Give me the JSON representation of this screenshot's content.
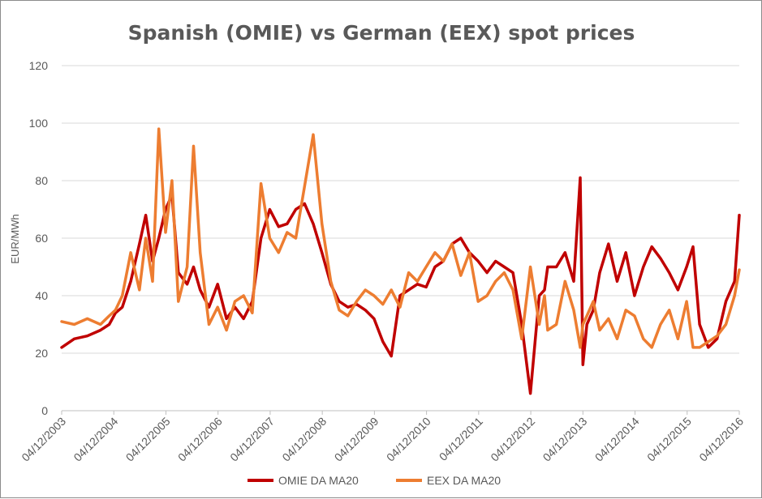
{
  "chart_data": {
    "type": "line",
    "title": "Spanish (OMIE) vs German (EEX) spot prices",
    "ylabel": "EUR/MWh",
    "xlabel": "",
    "ylim": [
      0,
      120
    ],
    "yticks": [
      0,
      20,
      40,
      60,
      80,
      100,
      120
    ],
    "xticks": [
      "04/12/2003",
      "04/12/2004",
      "04/12/2005",
      "04/12/2006",
      "04/12/2007",
      "04/12/2008",
      "04/12/2009",
      "04/12/2010",
      "04/12/2011",
      "04/12/2012",
      "04/12/2013",
      "04/12/2014",
      "04/12/2015",
      "04/12/2016"
    ],
    "grid": "horizontal",
    "legend": "bottom",
    "x_units": "date",
    "series": [
      {
        "name": "OMIE DA MA20",
        "color": "#c00000",
        "x": [
          "2003-12-04",
          "2004-03-01",
          "2004-06-01",
          "2004-09-01",
          "2004-11-01",
          "2004-12-15",
          "2005-02-01",
          "2005-04-01",
          "2005-06-01",
          "2005-07-15",
          "2005-09-01",
          "2005-10-15",
          "2005-12-01",
          "2006-01-15",
          "2006-03-01",
          "2006-05-01",
          "2006-06-15",
          "2006-08-01",
          "2006-10-01",
          "2006-12-01",
          "2007-02-01",
          "2007-04-01",
          "2007-06-01",
          "2007-08-01",
          "2007-10-01",
          "2007-12-01",
          "2008-02-01",
          "2008-04-01",
          "2008-06-01",
          "2008-08-01",
          "2008-10-01",
          "2008-12-01",
          "2009-02-01",
          "2009-04-01",
          "2009-06-01",
          "2009-08-01",
          "2009-10-01",
          "2009-12-01",
          "2010-02-01",
          "2010-04-01",
          "2010-06-01",
          "2010-08-01",
          "2010-10-01",
          "2010-12-01",
          "2011-02-01",
          "2011-04-01",
          "2011-06-01",
          "2011-08-01",
          "2011-10-01",
          "2011-12-01",
          "2012-02-01",
          "2012-04-01",
          "2012-06-01",
          "2012-08-01",
          "2012-10-01",
          "2012-12-01",
          "2013-02-01",
          "2013-03-10",
          "2013-04-01",
          "2013-06-01",
          "2013-08-01",
          "2013-10-01",
          "2013-11-15",
          "2013-12-04",
          "2014-01-01",
          "2014-02-15",
          "2014-04-01",
          "2014-06-01",
          "2014-08-01",
          "2014-10-01",
          "2014-12-01",
          "2015-02-01",
          "2015-04-01",
          "2015-06-01",
          "2015-08-01",
          "2015-10-01",
          "2015-12-01",
          "2016-01-15",
          "2016-03-01",
          "2016-05-01",
          "2016-07-01",
          "2016-09-01",
          "2016-11-01",
          "2016-12-04"
        ],
        "y": [
          22,
          25,
          26,
          28,
          30,
          34,
          36,
          45,
          58,
          68,
          52,
          60,
          70,
          75,
          48,
          44,
          50,
          42,
          36,
          44,
          32,
          36,
          32,
          38,
          60,
          70,
          64,
          65,
          70,
          72,
          65,
          55,
          44,
          38,
          36,
          37,
          35,
          32,
          24,
          19,
          40,
          42,
          44,
          43,
          50,
          52,
          58,
          60,
          55,
          52,
          48,
          52,
          50,
          48,
          30,
          6,
          40,
          42,
          50,
          50,
          55,
          45,
          81,
          16,
          30,
          35,
          48,
          58,
          45,
          55,
          40,
          50,
          57,
          53,
          48,
          42,
          50,
          57,
          30,
          22,
          25,
          38,
          45,
          68
        ]
      },
      {
        "name": "EEX DA MA20",
        "color": "#ed7d31",
        "x": [
          "2003-12-04",
          "2004-03-01",
          "2004-06-01",
          "2004-09-01",
          "2004-11-01",
          "2004-12-15",
          "2005-02-01",
          "2005-04-01",
          "2005-06-01",
          "2005-07-15",
          "2005-09-01",
          "2005-10-15",
          "2005-12-01",
          "2006-01-15",
          "2006-03-01",
          "2006-05-01",
          "2006-06-15",
          "2006-08-01",
          "2006-10-01",
          "2006-12-01",
          "2007-02-01",
          "2007-04-01",
          "2007-06-01",
          "2007-08-01",
          "2007-10-01",
          "2007-12-01",
          "2008-02-01",
          "2008-04-01",
          "2008-06-01",
          "2008-08-01",
          "2008-10-01",
          "2008-12-01",
          "2009-02-01",
          "2009-04-01",
          "2009-06-01",
          "2009-08-01",
          "2009-10-01",
          "2009-12-01",
          "2010-02-01",
          "2010-04-01",
          "2010-06-01",
          "2010-08-01",
          "2010-10-01",
          "2010-12-01",
          "2011-02-01",
          "2011-04-01",
          "2011-06-01",
          "2011-08-01",
          "2011-10-01",
          "2011-12-01",
          "2012-02-01",
          "2012-04-01",
          "2012-06-01",
          "2012-08-01",
          "2012-10-01",
          "2012-12-01",
          "2013-02-01",
          "2013-03-10",
          "2013-04-01",
          "2013-06-01",
          "2013-08-01",
          "2013-10-01",
          "2013-11-15",
          "2013-12-04",
          "2014-01-01",
          "2014-02-15",
          "2014-04-01",
          "2014-06-01",
          "2014-08-01",
          "2014-10-01",
          "2014-12-01",
          "2015-02-01",
          "2015-04-01",
          "2015-06-01",
          "2015-08-01",
          "2015-10-01",
          "2015-12-01",
          "2016-01-15",
          "2016-03-01",
          "2016-05-01",
          "2016-07-01",
          "2016-09-01",
          "2016-11-01",
          "2016-12-04"
        ],
        "y": [
          31,
          30,
          32,
          30,
          33,
          35,
          40,
          55,
          42,
          60,
          45,
          98,
          62,
          80,
          38,
          50,
          92,
          55,
          30,
          36,
          28,
          38,
          40,
          34,
          79,
          60,
          55,
          62,
          60,
          78,
          96,
          65,
          45,
          35,
          33,
          38,
          42,
          40,
          37,
          42,
          36,
          48,
          45,
          50,
          55,
          52,
          58,
          47,
          55,
          38,
          40,
          45,
          48,
          42,
          25,
          50,
          30,
          40,
          28,
          30,
          45,
          35,
          22,
          30,
          33,
          38,
          28,
          32,
          25,
          35,
          33,
          25,
          22,
          30,
          35,
          25,
          38,
          22,
          22,
          24,
          26,
          30,
          40,
          49
        ]
      }
    ]
  }
}
